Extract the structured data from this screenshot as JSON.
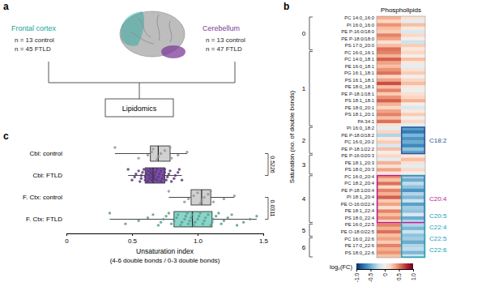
{
  "diagram": {
    "panel": "a",
    "regions": [
      {
        "title": "Frontal cortex",
        "color": "#1aa59a",
        "counts": [
          "n = 13 control",
          "n = 45 FTLD"
        ]
      },
      {
        "title": "Cerebellum",
        "color": "#7d3c98",
        "counts": [
          "n = 13 control",
          "n = 47 FTLD"
        ]
      }
    ],
    "method": "Lipidomics"
  },
  "chart_data": [
    {
      "type": "heatmap",
      "panel": "b",
      "title": "Phospholipids",
      "y_label": "Saturation (no. of double bonds)",
      "categories": [
        "PC 14:0_16:0",
        null,
        "PI 16:0_16:0",
        null,
        "PE P-16:0/18:0",
        null,
        "PE P-18:0/18:0",
        null,
        "PS 17:0_20:0",
        null,
        "PC 16:0_16:1",
        null,
        "PC 14:0_18:1",
        null,
        "PE 16:0_18:1",
        null,
        "PG 16:1_18:1",
        null,
        "PS 16:1_18:1",
        null,
        "PE 18:0_18:1",
        null,
        "PE P-18:1/18:1",
        null,
        "PS 18:1_18:1",
        null,
        "PE 18:0_20:1",
        null,
        "PS 18:1_20:1",
        null,
        "PA 34:1",
        null,
        "PI 16:0_18:2",
        null,
        "PE P-18:0/18:2",
        null,
        "PC 16:0_20:2",
        null,
        "PE P-18:1/22:2",
        null,
        "PE P-16:0/20:3",
        null,
        "PE 18:1_20:3",
        null,
        "PS 18:0_20:3",
        null,
        "PC 16:0_20:4",
        null,
        "PC 18:2_20:4",
        null,
        "PE P-18:1/20:4",
        null,
        "PI 18:1_20:4",
        null,
        "PE O-16:0/22:4",
        null,
        "PE 18:1_22:4",
        null,
        "PS 18:0_22:4",
        null,
        "PE 16:0_22:5",
        null,
        "PE O-18:0/22:5",
        null,
        "PC 16:0_22:6",
        null,
        "PE 17:0_22:6",
        null,
        "PS 18:0_22:6",
        null
      ],
      "row_group": [
        0,
        0,
        0,
        0,
        0,
        0,
        0,
        0,
        0,
        0,
        1,
        1,
        1,
        1,
        1,
        1,
        1,
        1,
        1,
        1,
        1,
        1,
        1,
        1,
        1,
        1,
        1,
        1,
        1,
        1,
        1,
        1,
        2,
        2,
        2,
        2,
        2,
        2,
        2,
        2,
        3,
        3,
        3,
        3,
        3,
        3,
        4,
        4,
        4,
        4,
        4,
        4,
        4,
        4,
        4,
        4,
        4,
        4,
        4,
        4,
        5,
        5,
        5,
        5,
        6,
        6,
        6,
        6,
        6,
        6
      ],
      "groups": [
        0,
        1,
        2,
        3,
        4,
        5,
        6
      ],
      "cells": [
        [
          0.35,
          0.15
        ],
        [
          0.2,
          -0.1
        ],
        [
          0.45,
          0.3
        ],
        [
          0.3,
          0.1
        ],
        [
          0.25,
          -0.15
        ],
        [
          0.5,
          0.2
        ],
        [
          0.4,
          0.05
        ],
        [
          0.15,
          -0.2
        ],
        [
          0.3,
          0.25
        ],
        [
          0.55,
          0.1
        ],
        [
          0.5,
          0.2
        ],
        [
          0.35,
          0.05
        ],
        [
          0.6,
          0.3
        ],
        [
          0.4,
          0.1
        ],
        [
          0.3,
          -0.1
        ],
        [
          0.45,
          0.15
        ],
        [
          0.55,
          0.25
        ],
        [
          0.2,
          0.0
        ],
        [
          0.4,
          0.2
        ],
        [
          0.65,
          0.3
        ],
        [
          0.3,
          0.1
        ],
        [
          0.5,
          -0.05
        ],
        [
          0.25,
          0.15
        ],
        [
          0.45,
          0.2
        ],
        [
          0.6,
          0.35
        ],
        [
          0.35,
          0.05
        ],
        [
          0.2,
          -0.15
        ],
        [
          0.4,
          0.1
        ],
        [
          0.5,
          0.25
        ],
        [
          0.3,
          0.0
        ],
        [
          0.55,
          0.2
        ],
        [
          0.15,
          -0.1
        ],
        [
          -0.1,
          -0.55
        ],
        [
          0.2,
          -0.7
        ],
        [
          -0.3,
          -0.45
        ],
        [
          0.1,
          -0.6
        ],
        [
          0.25,
          -0.5
        ],
        [
          -0.15,
          -0.65
        ],
        [
          0.3,
          -0.4
        ],
        [
          0.05,
          -0.55
        ],
        [
          0.2,
          0.1
        ],
        [
          -0.1,
          0.3
        ],
        [
          0.35,
          0.15
        ],
        [
          0.15,
          -0.1
        ],
        [
          0.4,
          0.2
        ],
        [
          0.1,
          0.05
        ],
        [
          0.45,
          -0.35
        ],
        [
          0.3,
          -0.5
        ],
        [
          0.55,
          -0.25
        ],
        [
          0.2,
          -0.4
        ],
        [
          0.5,
          -0.6
        ],
        [
          0.35,
          -0.3
        ],
        [
          0.6,
          -0.45
        ],
        [
          0.25,
          -0.2
        ],
        [
          0.4,
          -0.55
        ],
        [
          0.15,
          -0.35
        ],
        [
          0.5,
          -0.4
        ],
        [
          0.3,
          -0.15
        ],
        [
          0.45,
          -0.5
        ],
        [
          0.2,
          -0.3
        ],
        [
          0.5,
          -0.3
        ],
        [
          0.35,
          -0.45
        ],
        [
          0.55,
          -0.2
        ],
        [
          0.3,
          -0.4
        ],
        [
          0.4,
          -0.35
        ],
        [
          0.25,
          -0.5
        ],
        [
          0.5,
          -0.3
        ],
        [
          0.35,
          -0.25
        ],
        [
          0.45,
          -0.45
        ],
        [
          0.3,
          -0.2
        ]
      ],
      "color_label": "log₂(FC)",
      "clim": [
        -1,
        1
      ],
      "cticks": [
        {
          "value": -1,
          "label": "-1.0"
        },
        -0.5,
        0,
        0.5,
        {
          "value": 1,
          "label": "1.0"
        }
      ],
      "annotations": [
        {
          "texts": [
            "C18:2"
          ],
          "color": "#2f5597",
          "groups": [
            2,
            2
          ],
          "columns": [
            1,
            1
          ]
        },
        {
          "texts": [
            "C20:4"
          ],
          "color": "#c2188f",
          "groups": [
            4,
            4
          ],
          "columns": [
            0,
            1
          ]
        },
        {
          "texts": [
            "C20:5",
            "C22:4",
            "C22:5",
            "C22:6"
          ],
          "color": "#17a2b8",
          "groups": [
            4,
            6
          ],
          "columns": [
            1,
            1
          ]
        }
      ]
    },
    {
      "type": "box",
      "panel": "c",
      "orientation": "horizontal",
      "categories": [
        "Cbl: control",
        "Cbl: FTLD",
        "F. Ctx: control",
        "F. Ctx: FTLD"
      ],
      "colors": [
        "#d0d0d0",
        "#7b4fa6",
        "#d0d0d0",
        "#86d6c9"
      ],
      "boxes": [
        {
          "whisker_low": 0.37,
          "q1": 0.64,
          "median": 0.7,
          "q3": 0.79,
          "whisker_high": 0.92,
          "points": [
            0.37,
            0.55,
            0.62,
            0.65,
            0.66,
            0.69,
            0.7,
            0.72,
            0.75,
            0.79,
            0.8,
            0.85,
            0.92
          ]
        },
        {
          "whisker_low": 0.47,
          "q1": 0.6,
          "median": 0.66,
          "q3": 0.75,
          "whisker_high": 0.88,
          "points": [
            0.47,
            0.5,
            0.52,
            0.53,
            0.55,
            0.56,
            0.57,
            0.57,
            0.58,
            0.59,
            0.6,
            0.6,
            0.61,
            0.62,
            0.62,
            0.63,
            0.63,
            0.64,
            0.64,
            0.65,
            0.65,
            0.65,
            0.66,
            0.66,
            0.67,
            0.67,
            0.68,
            0.69,
            0.69,
            0.7,
            0.71,
            0.72,
            0.72,
            0.73,
            0.74,
            0.75,
            0.75,
            0.76,
            0.77,
            0.78,
            0.79,
            0.8,
            0.82,
            0.83,
            0.85,
            0.86,
            0.88
          ]
        },
        {
          "whisker_low": 0.78,
          "q1": 0.95,
          "median": 1.03,
          "q3": 1.1,
          "whisker_high": 1.28,
          "points": [
            0.78,
            0.9,
            0.93,
            0.97,
            1.0,
            1.02,
            1.03,
            1.05,
            1.08,
            1.1,
            1.12,
            1.2,
            1.28
          ]
        },
        {
          "whisker_low": 0.33,
          "q1": 0.82,
          "median": 0.96,
          "q3": 1.11,
          "whisker_high": 1.45,
          "points": [
            0.33,
            0.45,
            0.55,
            0.62,
            0.66,
            0.7,
            0.72,
            0.74,
            0.76,
            0.78,
            0.8,
            0.82,
            0.84,
            0.85,
            0.87,
            0.88,
            0.9,
            0.91,
            0.92,
            0.93,
            0.94,
            0.95,
            0.96,
            0.97,
            0.98,
            1.0,
            1.01,
            1.02,
            1.04,
            1.05,
            1.06,
            1.08,
            1.1,
            1.11,
            1.12,
            1.14,
            1.16,
            1.18,
            1.2,
            1.23,
            1.26,
            1.3,
            1.35,
            1.4,
            1.45
          ]
        }
      ],
      "xlim": [
        0,
        1.5
      ],
      "xticks": [
        0,
        0.5,
        {
          "value": 1,
          "label": "1.0"
        },
        1.5
      ],
      "x_label": [
        "Unsaturation index",
        "(4-6 double bonds / 0-3 double bonds)"
      ],
      "annotations": [
        {
          "text": "0.5226",
          "rows": [
            0,
            1
          ]
        },
        {
          "text": "0.0311",
          "rows": [
            2,
            3
          ]
        }
      ]
    }
  ]
}
